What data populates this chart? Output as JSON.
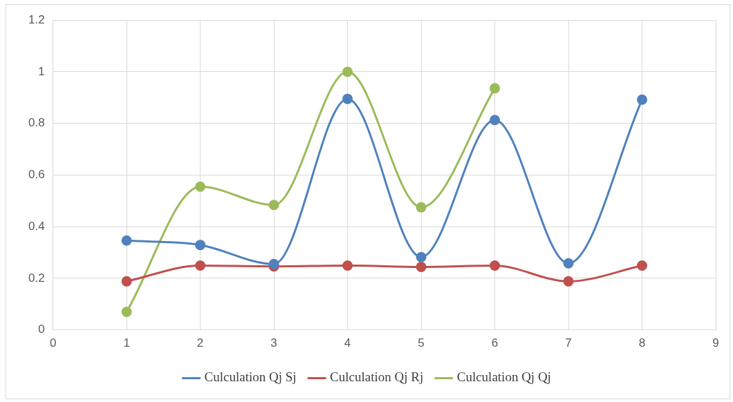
{
  "chart_data": {
    "type": "line",
    "x": [
      1,
      2,
      3,
      4,
      5,
      6,
      7,
      8
    ],
    "series": [
      {
        "name": "Culculation Qj Sj",
        "color": "#4f81bd",
        "values": [
          0.346,
          0.329,
          0.255,
          0.895,
          0.282,
          0.813,
          0.258,
          0.892
        ]
      },
      {
        "name": "Culculation Qj Rj",
        "color": "#c0504d",
        "values": [
          0.188,
          0.249,
          0.246,
          0.249,
          0.244,
          0.249,
          0.188,
          0.249
        ]
      },
      {
        "name": "Culculation Qj Qj",
        "color": "#9bbb59",
        "values": [
          0.07,
          0.555,
          0.484,
          1.0,
          0.475,
          0.936,
          null,
          null
        ]
      }
    ],
    "xlim": [
      0,
      9
    ],
    "xticks": [
      0,
      1,
      2,
      3,
      4,
      5,
      6,
      7,
      8,
      9
    ],
    "ylim": [
      0,
      1.2
    ],
    "yticks": [
      0,
      0.2,
      0.4,
      0.6,
      0.8,
      1,
      1.2
    ],
    "grid": true,
    "legend": "bottom",
    "marker": "circle",
    "line_style": "solid"
  }
}
